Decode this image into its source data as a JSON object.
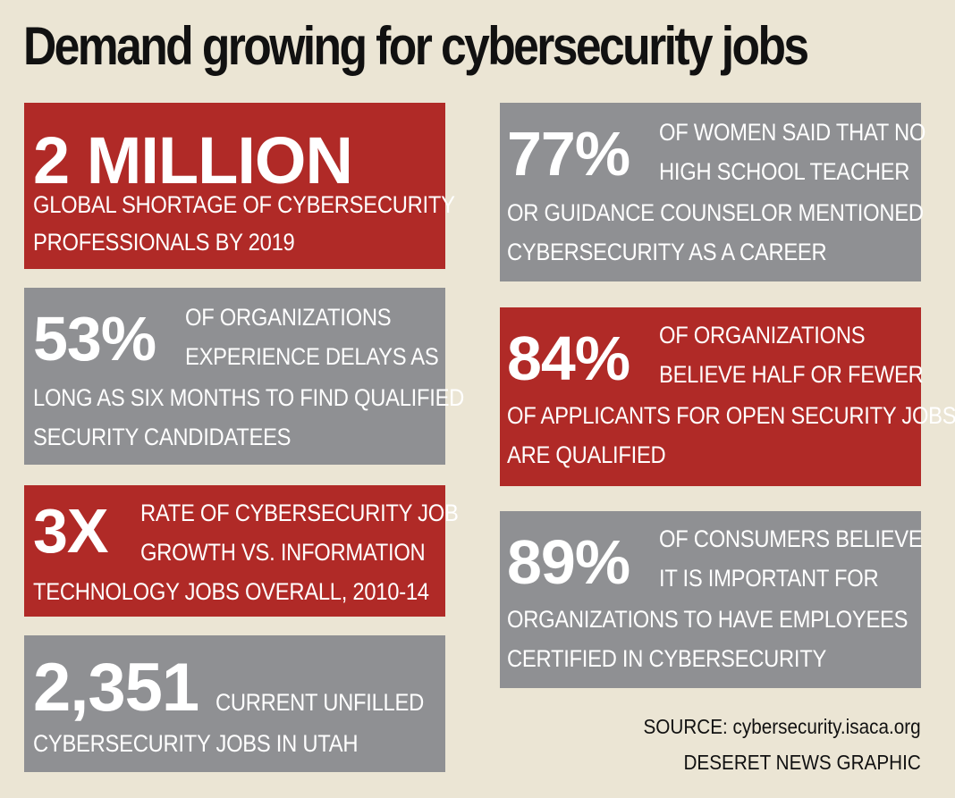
{
  "title": "Demand growing for cybersecurity jobs",
  "cards": {
    "c1": {
      "stat": "2 MILLION",
      "line1": "GLOBAL SHORTAGE OF CYBERSECURITY",
      "line2": "PROFESSIONALS BY 2019",
      "color": "#b02a27"
    },
    "c2": {
      "stat": "53%",
      "line1": "OF ORGANIZATIONS",
      "line2": "EXPERIENCE DELAYS AS",
      "line3": "LONG AS SIX MONTHS TO FIND QUALIFIED",
      "line4": "SECURITY CANDIDATEES",
      "color": "#8f9093"
    },
    "c3": {
      "stat": "3X",
      "line1": "RATE OF CYBERSECURITY JOB",
      "line2": "GROWTH VS. INFORMATION",
      "line3": "TECHNOLOGY JOBS OVERALL, 2010-14",
      "color": "#b02a27"
    },
    "c4": {
      "stat": "2,351",
      "line1": "CURRENT UNFILLED",
      "line2": "CYBERSECURITY JOBS IN UTAH",
      "color": "#8f9093"
    },
    "c5": {
      "stat": "77%",
      "line1": "OF WOMEN SAID THAT NO",
      "line2": "HIGH SCHOOL TEACHER",
      "line3": "OR GUIDANCE COUNSELOR MENTIONED",
      "line4": "CYBERSECURITY AS A CAREER",
      "color": "#8f9093"
    },
    "c6": {
      "stat": "84%",
      "line1": "OF ORGANIZATIONS",
      "line2": "BELIEVE HALF OR FEWER",
      "line3": "OF APPLICANTS FOR OPEN SECURITY JOBS",
      "line4": "ARE QUALIFIED",
      "color": "#b02a27"
    },
    "c7": {
      "stat": "89%",
      "line1": "OF CONSUMERS BELIEVE",
      "line2": "IT IS IMPORTANT FOR",
      "line3": "ORGANIZATIONS TO HAVE EMPLOYEES",
      "line4": "CERTIFIED IN CYBERSECURITY",
      "color": "#8f9093"
    }
  },
  "source": "SOURCE: cybersecurity.isaca.org",
  "credit": "DESERET NEWS GRAPHIC"
}
